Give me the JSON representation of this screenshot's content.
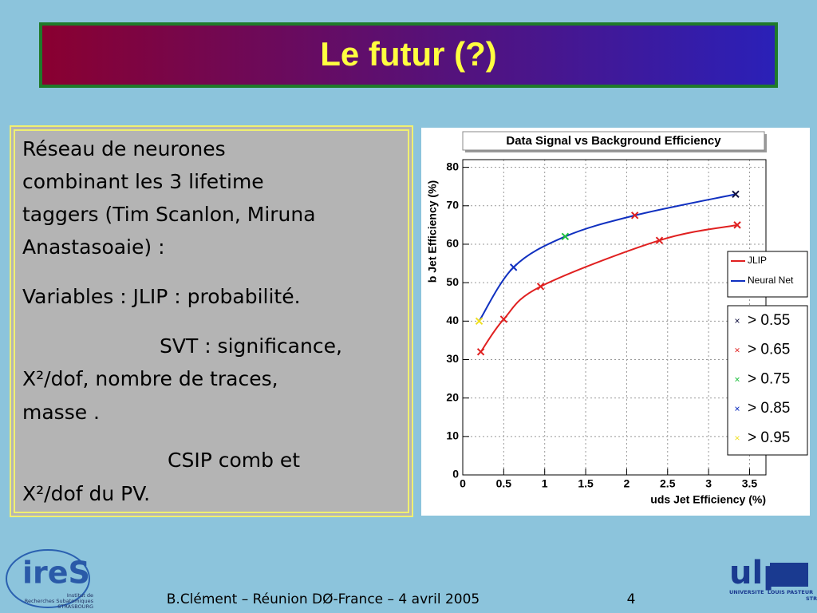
{
  "title": "Le futur (?)",
  "body": {
    "lines": [
      {
        "text": "Réseau de neurones",
        "indent": false
      },
      {
        "text": "combinant les 3 lifetime",
        "indent": false
      },
      {
        "text": "taggers (Tim Scanlon, Miruna",
        "indent": false
      },
      {
        "text": "Anastasoaie) :",
        "indent": false
      },
      {
        "text": "Variables : JLIP : probabilité.",
        "indent": false
      },
      {
        "text": "SVT : significance,",
        "indent": true
      },
      {
        "text": "X²/dof, nombre de traces,",
        "indent": false
      },
      {
        "text": "masse .",
        "indent": false
      },
      {
        "text": "CSIP comb et",
        "indent": true
      },
      {
        "text": "X²/dof du PV.",
        "indent": false
      }
    ]
  },
  "footer": {
    "text": "B.Clément – Réunion DØ-France – 4 avril 2005",
    "page": "4"
  },
  "logos": {
    "left": {
      "name": "ireS",
      "caption": [
        "Institut de",
        "Recherches Subatomiques",
        "STRASBOURG"
      ]
    },
    "right": {
      "name": "ulp",
      "caption": [
        "UNIVERSITE",
        "LOUIS PASTEUR",
        "STRASBOURG"
      ]
    }
  },
  "chart_data": {
    "type": "line",
    "title": "Data Signal vs Background Efficiency",
    "x_label": "uds Jet Efficiency (%)",
    "y_label": "b Jet Efficiency (%)",
    "xlim": [
      0,
      3.7
    ],
    "ylim": [
      0,
      82
    ],
    "xticks": [
      0,
      0.5,
      1,
      1.5,
      2,
      2.5,
      3,
      3.5
    ],
    "yticks": [
      0,
      10,
      20,
      30,
      40,
      50,
      60,
      70,
      80
    ],
    "grid": true,
    "series": [
      {
        "name": "JLIP",
        "color": "#e02020",
        "x": [
          0.22,
          0.5,
          0.95,
          2.4,
          3.35
        ],
        "values": [
          32,
          40.5,
          49,
          61,
          65
        ],
        "marker_colors": [
          "#e02020",
          "#e02020",
          "#e02020",
          "#e02020",
          "#e02020"
        ]
      },
      {
        "name": "Neural Net",
        "color": "#1030c0",
        "x": [
          0.2,
          0.62,
          1.25,
          2.1,
          3.33
        ],
        "values": [
          40,
          54,
          62,
          67.5,
          73
        ],
        "marker_colors": [
          "#f0e020",
          "#1030c0",
          "#20c040",
          "#e02020",
          "#101040"
        ]
      }
    ],
    "cuts": {
      "labels": [
        "> 0.55",
        "> 0.65",
        "> 0.75",
        "> 0.85",
        "> 0.95"
      ],
      "colors": [
        "#101040",
        "#e02020",
        "#20c040",
        "#1030c0",
        "#f0e020"
      ]
    }
  }
}
